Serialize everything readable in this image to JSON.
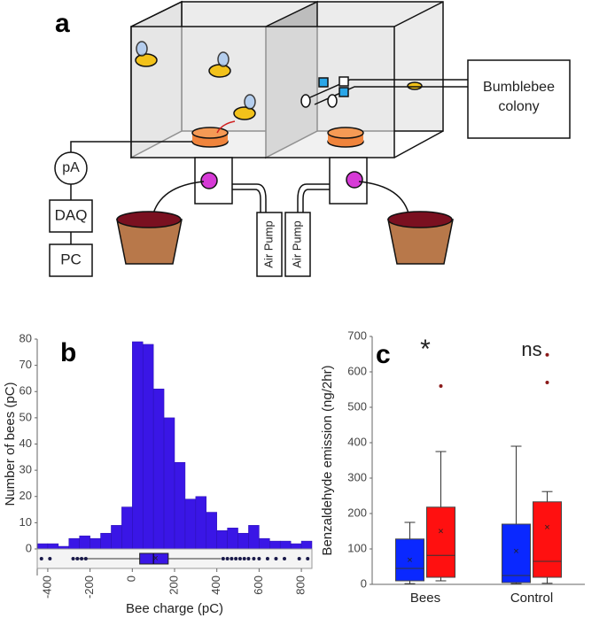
{
  "diagram": {
    "panel_label": "a",
    "meter": "pA",
    "daq": "DAQ",
    "pc": "PC",
    "pump_left": "Air Pump",
    "pump_right": "Air Pump",
    "colony": "Bumblebee colony"
  },
  "chart_data": [
    {
      "type": "histogram",
      "panel_label": "b",
      "ylabel": "Number of bees (pC)",
      "xlabel": "Bee charge (pC)",
      "color": "#3a16e6",
      "bins": [
        -450,
        -400,
        -350,
        -300,
        -250,
        -200,
        -150,
        -100,
        -50,
        0,
        50,
        100,
        150,
        200,
        250,
        300,
        350,
        400,
        450,
        500,
        550,
        600,
        650,
        700,
        750,
        800,
        850
      ],
      "counts": [
        2,
        2,
        1,
        4,
        5,
        4,
        6,
        9,
        16,
        79,
        78,
        61,
        50,
        33,
        19,
        20,
        14,
        7,
        8,
        6,
        9,
        4,
        3,
        3,
        2,
        3
      ],
      "xlim": [
        -450,
        850
      ],
      "xticks": [
        -400,
        -200,
        0,
        200,
        400,
        600,
        800
      ],
      "ylim": [
        0,
        80
      ],
      "yticks": [
        0,
        10,
        20,
        30,
        40,
        50,
        60,
        70,
        80
      ],
      "box": {
        "min": -270,
        "q1": 35,
        "median": 100,
        "q3": 170,
        "max": 420,
        "mean": 110,
        "outliers": [
          -430,
          -390,
          -280,
          -260,
          -240,
          -220,
          430,
          450,
          470,
          490,
          510,
          530,
          550,
          575,
          600,
          640,
          680,
          720,
          790,
          830
        ]
      }
    },
    {
      "type": "box",
      "panel_label": "c",
      "ylabel": "Benzaldehyde emission (ng/2hr)",
      "categories": [
        "Bees",
        "Control"
      ],
      "annotations": [
        "*",
        "ns"
      ],
      "ylim": [
        0,
        700
      ],
      "yticks": [
        0,
        100,
        200,
        300,
        400,
        500,
        600,
        700
      ],
      "series": [
        {
          "color": "#0a28ff",
          "boxes": [
            {
              "min": 2,
              "q1": 10,
              "median": 45,
              "q3": 128,
              "max": 175,
              "mean": 67,
              "outliers": []
            },
            {
              "min": 2,
              "q1": 5,
              "median": 25,
              "q3": 170,
              "max": 390,
              "mean": 92,
              "outliers": []
            }
          ]
        },
        {
          "color": "#ff1010",
          "boxes": [
            {
              "min": 10,
              "q1": 20,
              "median": 82,
              "q3": 218,
              "max": 375,
              "mean": 148,
              "outliers": [
                560
              ]
            },
            {
              "min": 3,
              "q1": 20,
              "median": 65,
              "q3": 233,
              "max": 262,
              "mean": 160,
              "outliers": [
                570,
                648
              ]
            }
          ]
        }
      ]
    }
  ]
}
